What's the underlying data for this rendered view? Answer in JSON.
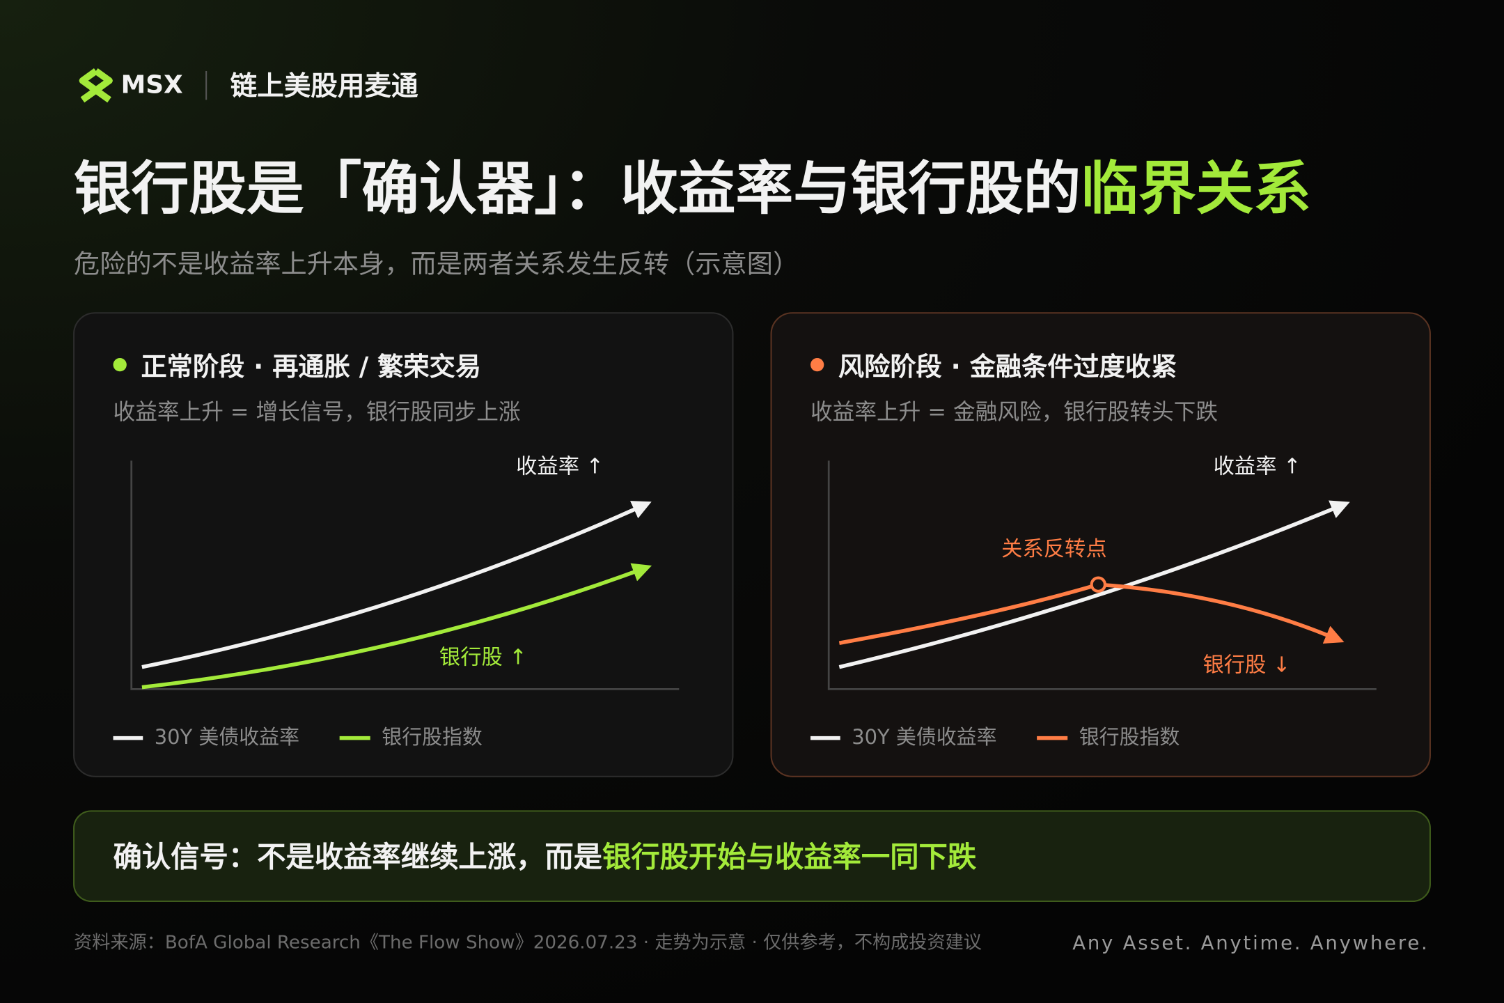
{
  "header": {
    "brand": "MSX",
    "tagline": "链上美股用麦通"
  },
  "title": {
    "main": "银行股是「确认器」：收益率与银行股的",
    "highlight": "临界关系"
  },
  "subtitle": "危险的不是收益率上升本身，而是两者关系发生反转（示意图）",
  "panels": [
    {
      "title": "正常阶段 · 再通胀 / 繁荣交易",
      "description": "收益率上升 = 增长信号，银行股同步上涨",
      "yield_label": "收益率 ↑",
      "bank_label": "银行股 ↑",
      "legend": [
        "30Y 美债收益率",
        "银行股指数"
      ]
    },
    {
      "title": "风险阶段 · 金融条件过度收紧",
      "description": "收益率上升 = 金融风险，银行股转头下跌",
      "yield_label": "收益率 ↑",
      "reversal_label": "关系反转点",
      "bank_label": "银行股 ↓",
      "legend": [
        "30Y 美债收益率",
        "银行股指数"
      ]
    }
  ],
  "callout": {
    "text": "确认信号：不是收益率继续上涨，而是",
    "highlight": "银行股开始与收益率一同下跌"
  },
  "footer": {
    "source": "资料来源：BofA Global Research《The Flow Show》2026.07.23 · 走势为示意 · 仅供参考，不构成投资建议",
    "slogan": "Any Asset. Anytime. Anywhere."
  }
}
